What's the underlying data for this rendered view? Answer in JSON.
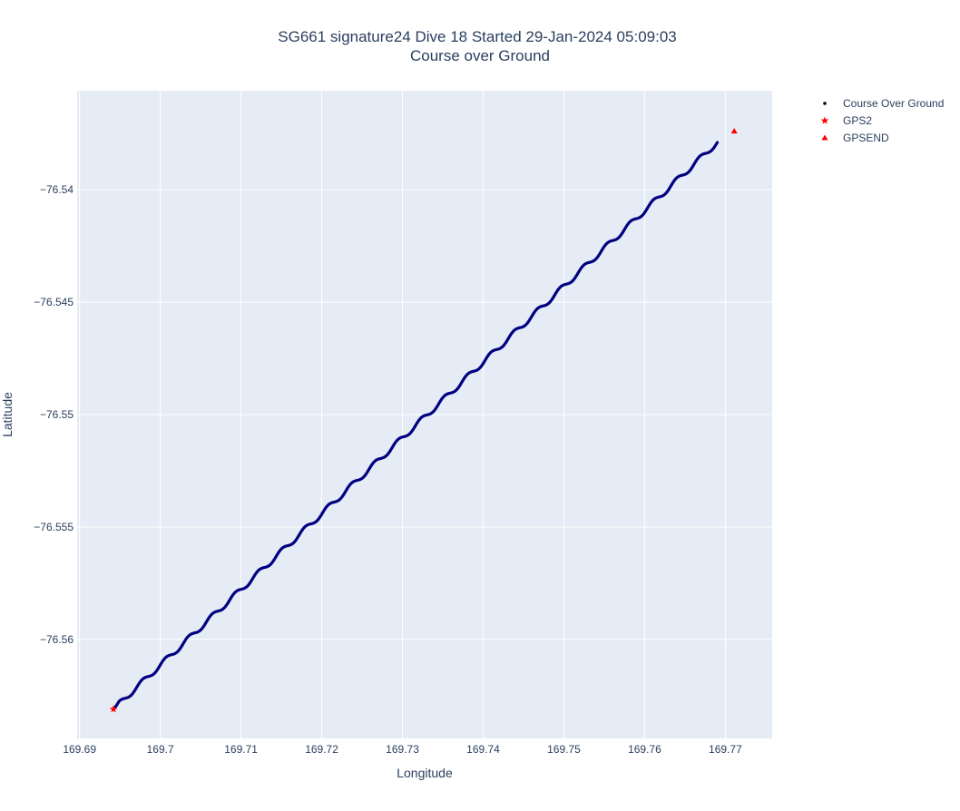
{
  "chart_data": {
    "type": "scatter",
    "title": "SG661 signature24 Dive 18 Started 29-Jan-2024 05:09:03",
    "subtitle": "Course over Ground",
    "xlabel": "Longitude",
    "ylabel": "Latitude",
    "xlim": [
      169.6897,
      169.7758
    ],
    "ylim": [
      -76.5644,
      -76.5356
    ],
    "x_ticks": [
      169.69,
      169.7,
      169.71,
      169.72,
      169.73,
      169.74,
      169.75,
      169.76,
      169.77
    ],
    "x_tick_labels": [
      "169.69",
      "169.7",
      "169.71",
      "169.72",
      "169.73",
      "169.74",
      "169.75",
      "169.76",
      "169.77"
    ],
    "y_ticks": [
      -76.54,
      -76.545,
      -76.55,
      -76.555,
      -76.56
    ],
    "y_tick_labels": [
      "−76.54",
      "−76.545",
      "−76.55",
      "−76.555",
      "−76.56"
    ],
    "grid": true,
    "legend_position": "top-right",
    "colors": {
      "plot_bg": "#e5ecf6",
      "grid": "#ffffff",
      "course": "#000080",
      "markers": "#ff0000"
    },
    "series": [
      {
        "name": "Course Over Ground",
        "marker": "dot",
        "color": "#000080",
        "start": [
          169.6942,
          -76.5631
        ],
        "end": [
          169.769,
          -76.5379
        ],
        "wiggle_count": 26,
        "wiggle_amplitude": 0.00012
      },
      {
        "name": "GPS2",
        "marker": "star",
        "color": "#ff0000",
        "points": [
          [
            169.6942,
            -76.5631
          ]
        ]
      },
      {
        "name": "GPSEND",
        "marker": "triangle-up",
        "color": "#ff0000",
        "points": [
          [
            169.7711,
            -76.5374
          ]
        ]
      }
    ]
  }
}
